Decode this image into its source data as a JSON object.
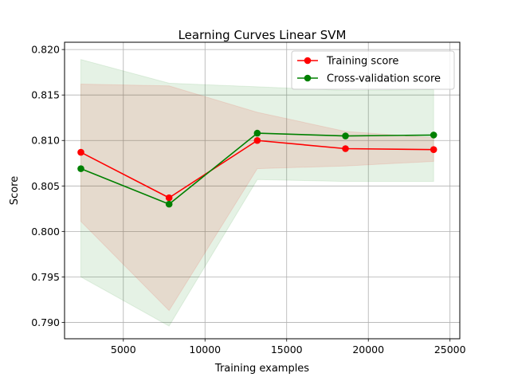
{
  "chart_data": {
    "type": "line",
    "title": "Learning Curves Linear SVM",
    "xlabel": "Training examples",
    "ylabel": "Score",
    "xlim": [
      1400,
      25600
    ],
    "ylim": [
      0.7882,
      0.8208
    ],
    "grid": true,
    "legend_position": "top-right",
    "x_ticks": [
      5000,
      10000,
      15000,
      20000,
      25000
    ],
    "x_tick_labels": [
      "5000",
      "10000",
      "15000",
      "20000",
      "25000"
    ],
    "y_ticks": [
      0.79,
      0.795,
      0.8,
      0.805,
      0.81,
      0.815,
      0.82
    ],
    "y_tick_labels": [
      "0.790",
      "0.795",
      "0.800",
      "0.805",
      "0.810",
      "0.815",
      "0.820"
    ],
    "x": [
      2400,
      7800,
      13200,
      18600,
      24000
    ],
    "series": [
      {
        "name": "Training score",
        "color": "#ff0000",
        "marker": "circle",
        "values": [
          0.8087,
          0.8037,
          0.81,
          0.8091,
          0.809
        ],
        "band_lower": [
          0.8011,
          0.7913,
          0.8069,
          0.8072,
          0.8077
        ],
        "band_upper": [
          0.8162,
          0.816,
          0.8131,
          0.811,
          0.8103
        ],
        "band_color": "#ff0000"
      },
      {
        "name": "Cross-validation score",
        "color": "#008000",
        "marker": "circle",
        "values": [
          0.8069,
          0.803,
          0.8108,
          0.8105,
          0.8106
        ],
        "band_lower": [
          0.795,
          0.7896,
          0.8057,
          0.8055,
          0.8055
        ],
        "band_upper": [
          0.8189,
          0.8163,
          0.8159,
          0.8155,
          0.8156
        ],
        "band_color": "#008000"
      }
    ]
  }
}
